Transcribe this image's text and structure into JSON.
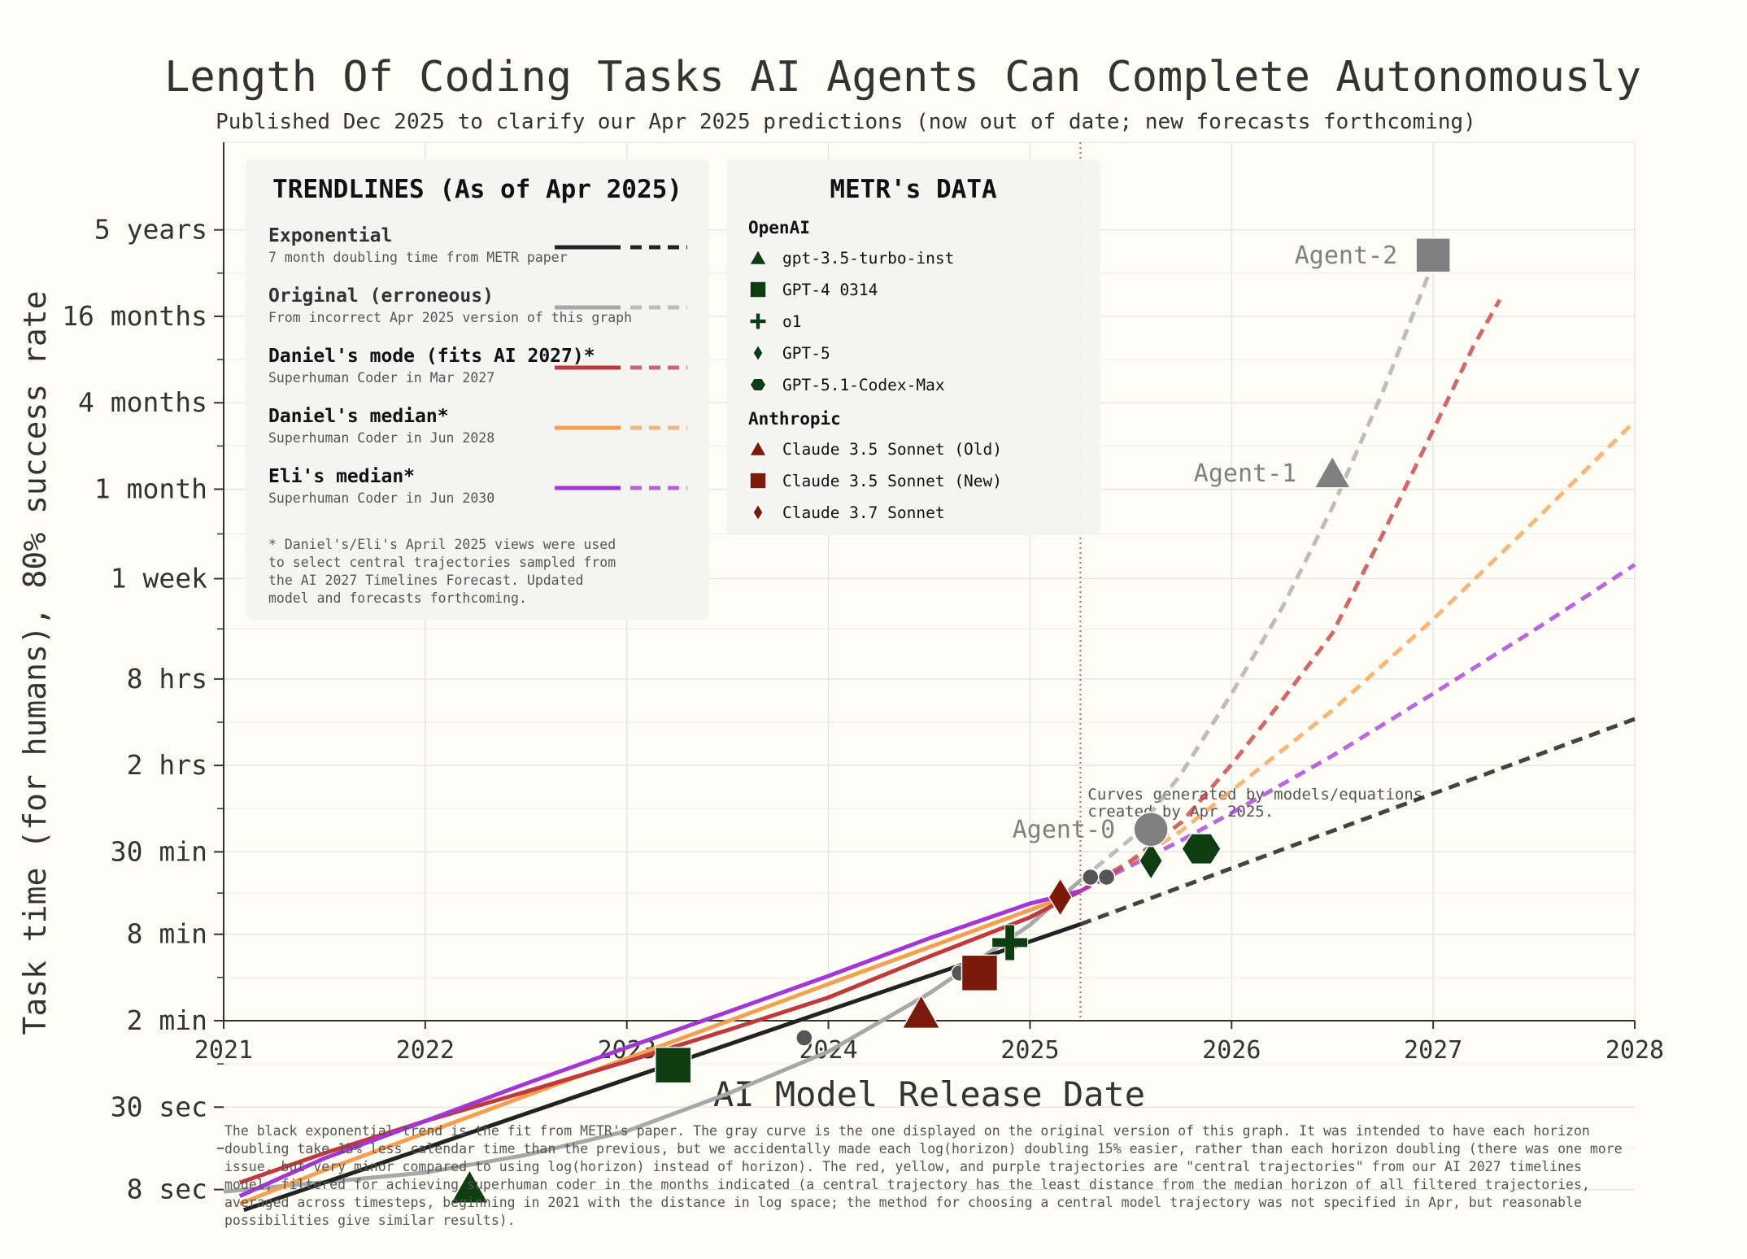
{
  "colors": {
    "background": "#fdfcf5",
    "exponential": "#222222",
    "original": "#a8a8a8",
    "daniel_mode": "#c0393b",
    "daniel_median": "#f5a050",
    "eli_median": "#a236d6",
    "openai": "#0f3d12",
    "anthropic": "#7b1a0a",
    "agent": "#808080"
  },
  "chart_data": {
    "type": "line",
    "title": "Length Of Coding Tasks AI Agents Can Complete Autonomously",
    "subtitle": "Published Dec 2025 to clarify our Apr 2025 predictions (now out of date; new forecasts forthcoming)",
    "xlabel": "AI Model Release Date",
    "ylabel": "Task time (for humans), 80% success rate",
    "xlim": [
      2021,
      2028
    ],
    "y_scale": "log",
    "y_unit": "minutes",
    "ylim_minutes": [
      2.0,
      2628000
    ],
    "x_ticks": [
      2021,
      2022,
      2023,
      2024,
      2025,
      2026,
      2027,
      2028
    ],
    "y_ticks": [
      {
        "label": "8 sec",
        "minutes": 0.1333
      },
      {
        "label": "30 sec",
        "minutes": 0.5
      },
      {
        "label": "2 min",
        "minutes": 2
      },
      {
        "label": "8 min",
        "minutes": 8
      },
      {
        "label": "30 min",
        "minutes": 30
      },
      {
        "label": "2 hrs",
        "minutes": 120
      },
      {
        "label": "8 hrs",
        "minutes": 480
      },
      {
        "label": "1 week",
        "minutes": 2400
      },
      {
        "label": "1 month",
        "minutes": 10080
      },
      {
        "label": "4 months",
        "minutes": 40320
      },
      {
        "label": "16 months",
        "minutes": 161280
      },
      {
        "label": "5 years",
        "minutes": 645120
      }
    ],
    "cutoff_date": 2025.25,
    "cutoff_note": [
      "Curves generated by models/equations",
      "created by Apr 2025."
    ],
    "series": [
      {
        "id": "exponential",
        "name": "Exponential",
        "points": [
          [
            2021.1,
            0.096
          ],
          [
            2025.25,
            9.4
          ],
          [
            2028,
            253
          ]
        ]
      },
      {
        "id": "original",
        "name": "Original (erroneous)",
        "points": [
          [
            2021,
            0.129
          ],
          [
            2021.5,
            0.15
          ],
          [
            2022,
            0.175
          ],
          [
            2022.5,
            0.232
          ],
          [
            2023,
            0.34
          ],
          [
            2023.5,
            0.62
          ],
          [
            2024,
            1.22
          ],
          [
            2024.5,
            3.1
          ],
          [
            2025,
            9.3
          ],
          [
            2025.25,
            19
          ],
          [
            2025.5,
            37
          ],
          [
            2025.75,
            105
          ],
          [
            2026,
            380
          ],
          [
            2026.25,
            1500
          ],
          [
            2026.5,
            7500
          ],
          [
            2026.75,
            48000
          ],
          [
            2027,
            380000
          ]
        ]
      },
      {
        "id": "daniel_mode",
        "name": "Daniel's mode (fits AI 2027)*",
        "points": [
          [
            2021.08,
            0.149
          ],
          [
            2021.5,
            0.239
          ],
          [
            2022,
            0.4
          ],
          [
            2022.5,
            0.64
          ],
          [
            2023,
            1.04
          ],
          [
            2023.5,
            1.72
          ],
          [
            2024,
            2.9
          ],
          [
            2024.5,
            5.6
          ],
          [
            2025,
            10.5
          ],
          [
            2025.25,
            16
          ],
          [
            2025.5,
            26
          ],
          [
            2025.75,
            48
          ],
          [
            2026,
            122
          ],
          [
            2026.25,
            340
          ],
          [
            2026.5,
            1000
          ],
          [
            2026.75,
            4900
          ],
          [
            2027,
            26000
          ],
          [
            2027.2,
            100000
          ],
          [
            2027.33,
            210000
          ]
        ]
      },
      {
        "id": "daniel_median",
        "name": "Daniel's median*",
        "points": [
          [
            2021.08,
            0.106
          ],
          [
            2021.5,
            0.182
          ],
          [
            2022,
            0.33
          ],
          [
            2022.5,
            0.6
          ],
          [
            2023,
            1.09
          ],
          [
            2023.5,
            1.98
          ],
          [
            2024,
            3.6
          ],
          [
            2024.5,
            6.5
          ],
          [
            2025,
            11.8
          ],
          [
            2025.25,
            16
          ],
          [
            2025.5,
            25
          ],
          [
            2025.75,
            42
          ],
          [
            2026,
            80
          ],
          [
            2026.5,
            290
          ],
          [
            2027,
            1250
          ],
          [
            2027.5,
            6000
          ],
          [
            2028,
            30000
          ]
        ]
      },
      {
        "id": "eli_median",
        "name": "Eli's median*",
        "points": [
          [
            2021.08,
            0.12
          ],
          [
            2021.5,
            0.22
          ],
          [
            2022,
            0.4
          ],
          [
            2022.5,
            0.73
          ],
          [
            2023,
            1.3
          ],
          [
            2023.5,
            2.3
          ],
          [
            2024,
            4.1
          ],
          [
            2024.5,
            7.5
          ],
          [
            2025,
            13.1
          ],
          [
            2025.25,
            16
          ],
          [
            2025.5,
            24
          ],
          [
            2025.75,
            36
          ],
          [
            2026,
            56
          ],
          [
            2026.5,
            140
          ],
          [
            2027,
            380
          ],
          [
            2027.5,
            1050
          ],
          [
            2028,
            3000
          ]
        ]
      }
    ],
    "models": [
      {
        "name": "gpt-3.5-turbo-inst",
        "org": "OpenAI",
        "x": 2022.22,
        "minutes": 0.137,
        "marker": "triangle"
      },
      {
        "name": "GPT-4 0314",
        "org": "OpenAI",
        "x": 2023.23,
        "minutes": 0.98,
        "marker": "square"
      },
      {
        "name": "o1",
        "org": "OpenAI",
        "x": 2024.9,
        "minutes": 7.0,
        "marker": "plus"
      },
      {
        "name": "GPT-5",
        "org": "OpenAI",
        "x": 2025.6,
        "minutes": 26,
        "marker": "diamond"
      },
      {
        "name": "GPT-5.1-Codex-Max",
        "org": "OpenAI",
        "x": 2025.85,
        "minutes": 31.5,
        "marker": "hexagon"
      },
      {
        "name": "Claude 3.5 Sonnet (Old)",
        "org": "Anthropic",
        "x": 2024.46,
        "minutes": 2.26,
        "marker": "triangle"
      },
      {
        "name": "Claude 3.5 Sonnet (New)",
        "org": "Anthropic",
        "x": 2024.75,
        "minutes": 4.3,
        "marker": "square"
      },
      {
        "name": "Claude 3.7 Sonnet",
        "org": "Anthropic",
        "x": 2025.15,
        "minutes": 14.5,
        "marker": "diamond"
      }
    ],
    "small_points": [
      [
        2023.88,
        1.52
      ],
      [
        2024.65,
        4.3
      ],
      [
        2025.3,
        20
      ],
      [
        2025.38,
        20
      ]
    ],
    "agents": [
      {
        "name": "Agent-0",
        "x": 2025.6,
        "minutes": 43,
        "marker": "circle"
      },
      {
        "name": "Agent-1",
        "x": 2026.5,
        "minutes": 13000,
        "marker": "triangle"
      },
      {
        "name": "Agent-2",
        "x": 2027,
        "minutes": 430000,
        "marker": "square"
      }
    ]
  },
  "legend_trend": {
    "title": "TRENDLINES (As of Apr 2025)",
    "items": [
      {
        "name": "Exponential",
        "desc": "7 month doubling time from METR paper"
      },
      {
        "name": "Original (erroneous)",
        "desc": "From incorrect Apr 2025 version of this graph"
      },
      {
        "name": "Daniel's mode (fits AI 2027)*",
        "desc": "Superhuman Coder in Mar 2027"
      },
      {
        "name": "Daniel's median*",
        "desc": "Superhuman Coder in Jun 2028"
      },
      {
        "name": "Eli's median*",
        "desc": "Superhuman Coder in Jun 2030"
      }
    ],
    "footnote": [
      "* Daniel's/Eli's April 2025 views were used",
      "to select central trajectories sampled from",
      "the AI 2027 Timelines Forecast. Updated",
      "model and forecasts forthcoming."
    ]
  },
  "legend_data": {
    "title": "METR's DATA",
    "groups": [
      {
        "org": "OpenAI",
        "items": [
          "gpt-3.5-turbo-inst",
          "GPT-4 0314",
          "o1",
          "GPT-5",
          "GPT-5.1-Codex-Max"
        ]
      },
      {
        "org": "Anthropic",
        "items": [
          "Claude 3.5 Sonnet (Old)",
          "Claude 3.5 Sonnet (New)",
          "Claude 3.7 Sonnet"
        ]
      }
    ]
  },
  "caption": "The black exponential trend is the fit from METR's paper. The gray curve is the one displayed on the original version of this graph. It was intended to have each horizon doubling take 15% less calendar time than the previous, but we accidentally made each log(horizon) doubling 15% easier, rather than each horizon doubling (there was one more issue, but very minor compared to using log(horizon) instead of horizon). The red, yellow, and purple trajectories are \"central trajectories\" from our AI 2027 timelines model, filtered for achieving superhuman coder in the months indicated (a central trajectory has the least distance from the median horizon of all filtered trajectories, averaged across timesteps, beginning in 2021 with the distance in log space; the method for choosing a central model trajectory was not specified in Apr, but reasonable possibilities give similar results)."
}
